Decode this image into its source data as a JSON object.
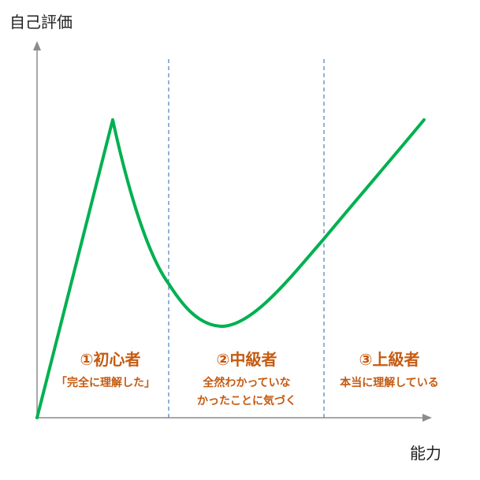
{
  "axes": {
    "y_label": "自己評価",
    "x_label": "能力",
    "axis_color": "#8c8c8c"
  },
  "curve": {
    "color": "#00b050",
    "shape": "rise-to-peak-then-dip-then-rise"
  },
  "divider_color": "#4a7ebb",
  "label_color": "#c55a11",
  "stages": [
    {
      "title": "①初心者",
      "lines": [
        "「完全に理解した」"
      ]
    },
    {
      "title": "②中級者",
      "lines": [
        "全然わかっていな",
        "かったことに気づく"
      ]
    },
    {
      "title": "③上級者",
      "lines": [
        "本当に理解している"
      ]
    }
  ]
}
